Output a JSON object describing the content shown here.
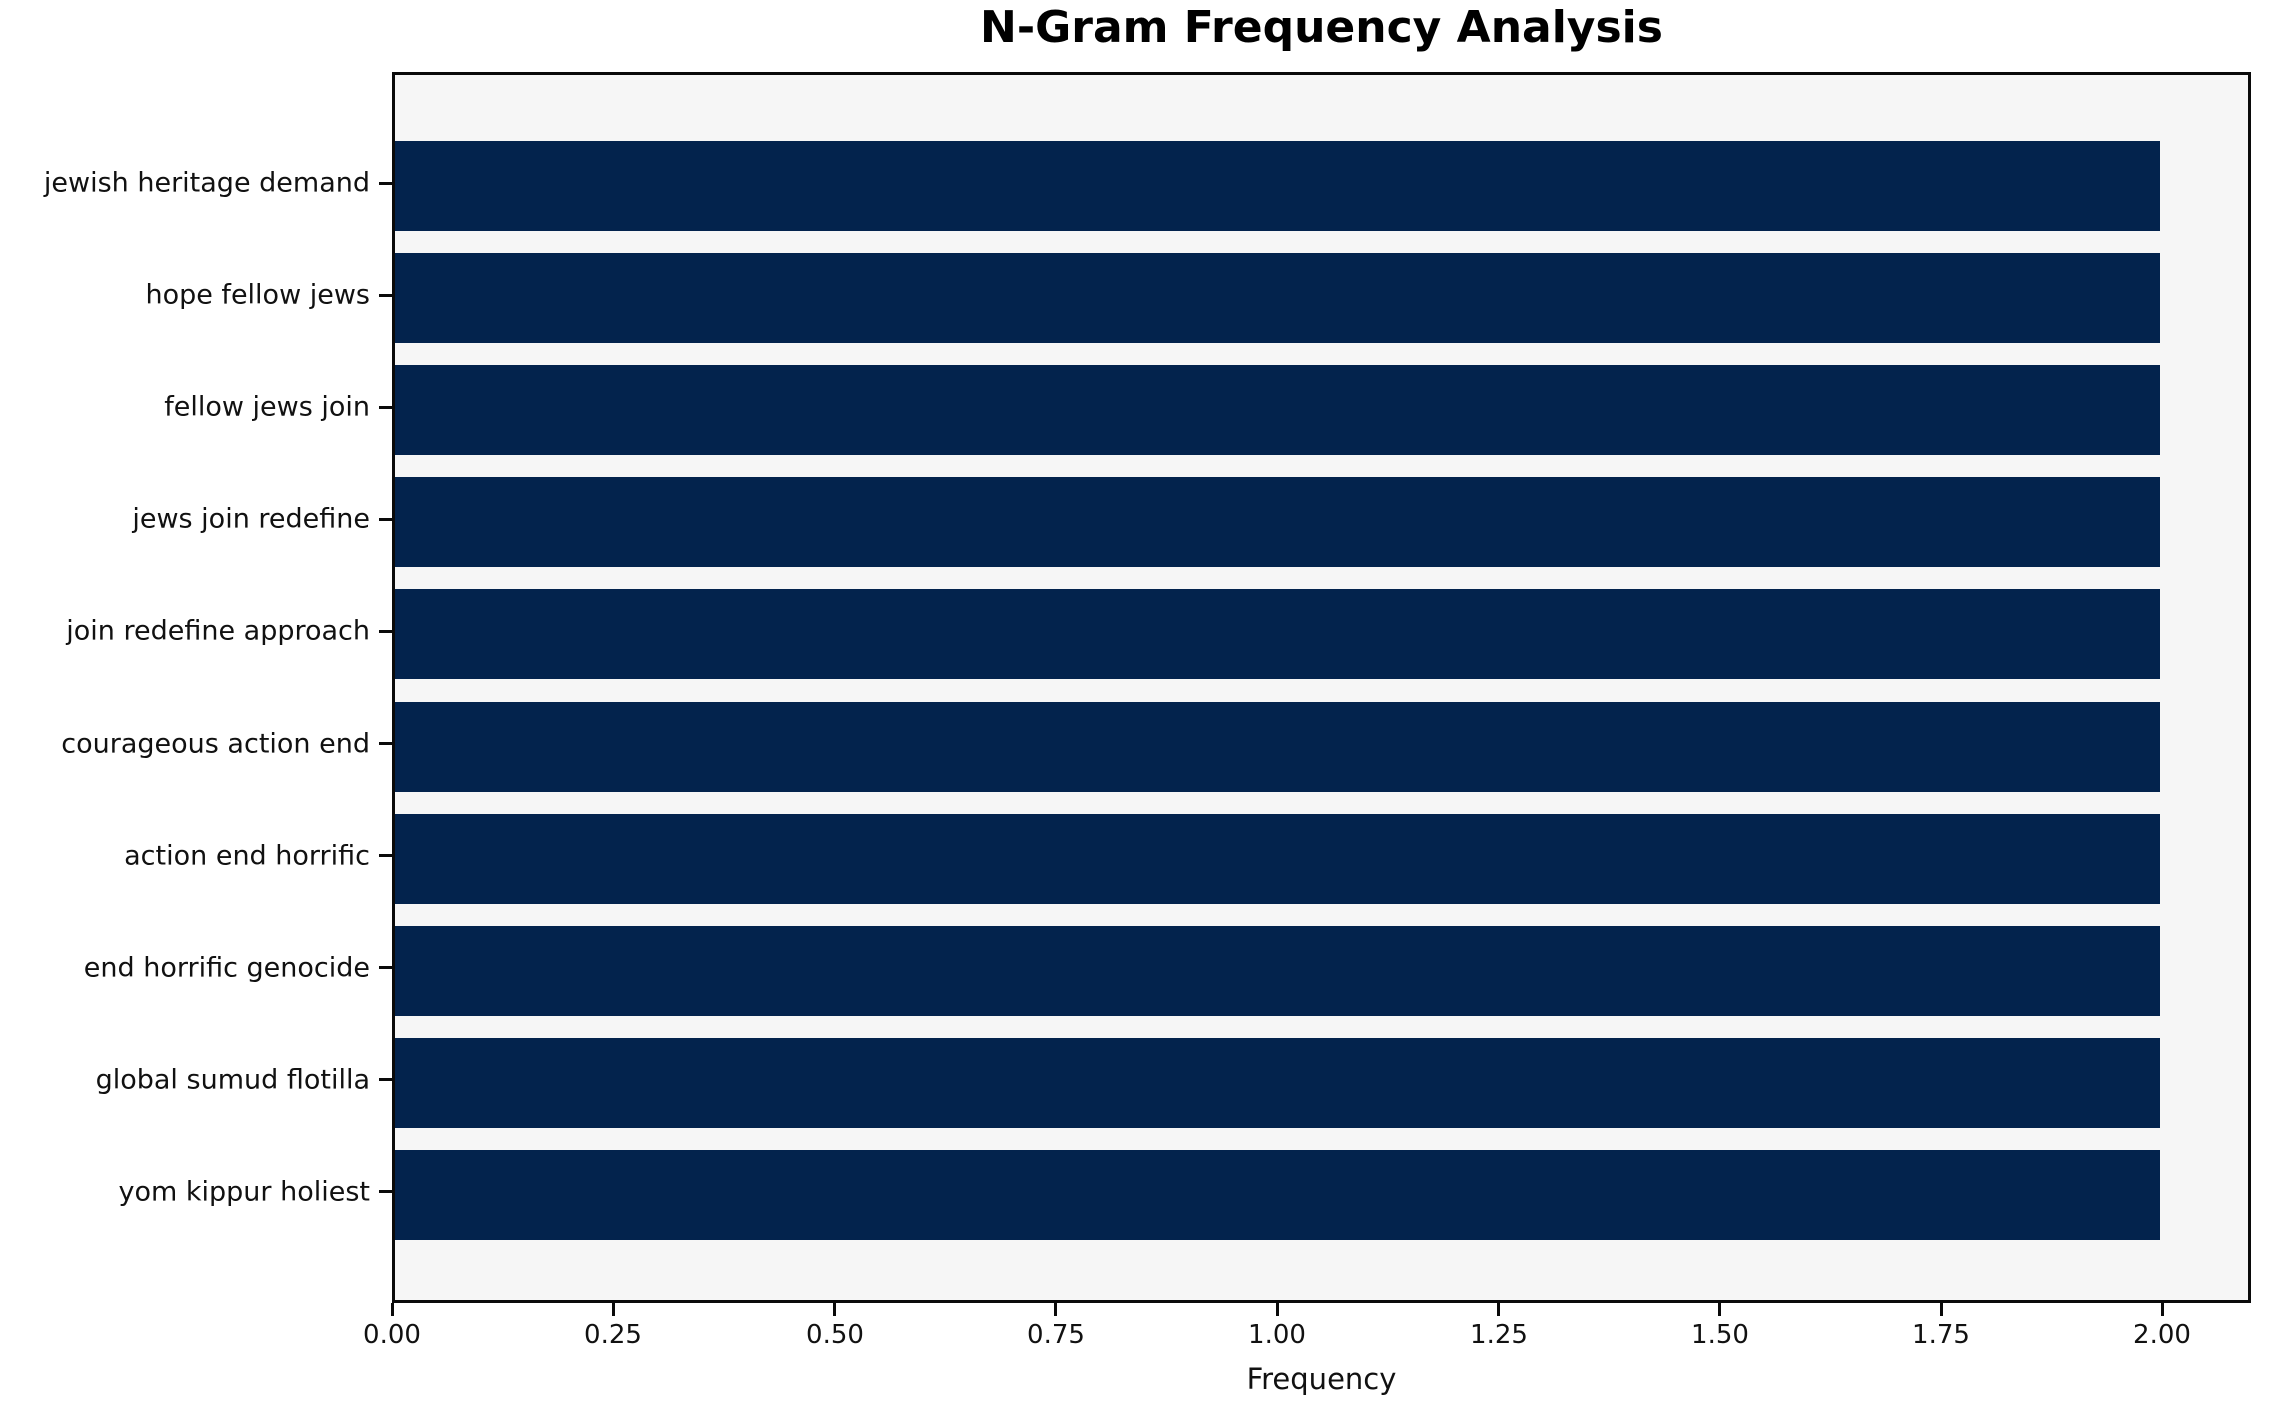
{
  "chart_data": {
    "type": "bar",
    "orientation": "horizontal",
    "title": "N-Gram Frequency Analysis",
    "xlabel": "Frequency",
    "ylabel": "",
    "categories": [
      "jewish heritage demand",
      "hope fellow jews",
      "fellow jews join",
      "jews join redefine",
      "join redefine approach",
      "courageous action end",
      "action end horrific",
      "end horrific genocide",
      "global sumud flotilla",
      "yom kippur holiest"
    ],
    "values": [
      2,
      2,
      2,
      2,
      2,
      2,
      2,
      2,
      2,
      2
    ],
    "xlim": [
      0,
      2.1
    ],
    "xticks": [
      "0.00",
      "0.25",
      "0.50",
      "0.75",
      "1.00",
      "1.25",
      "1.50",
      "1.75",
      "2.00"
    ],
    "xtick_values": [
      0,
      0.25,
      0.5,
      0.75,
      1.0,
      1.25,
      1.5,
      1.75,
      2.0
    ],
    "grid": false,
    "legend": null,
    "bar_color": "#03234d",
    "plot_bg_color": "#f6f6f6",
    "spine_color": "#0a0a0a"
  }
}
